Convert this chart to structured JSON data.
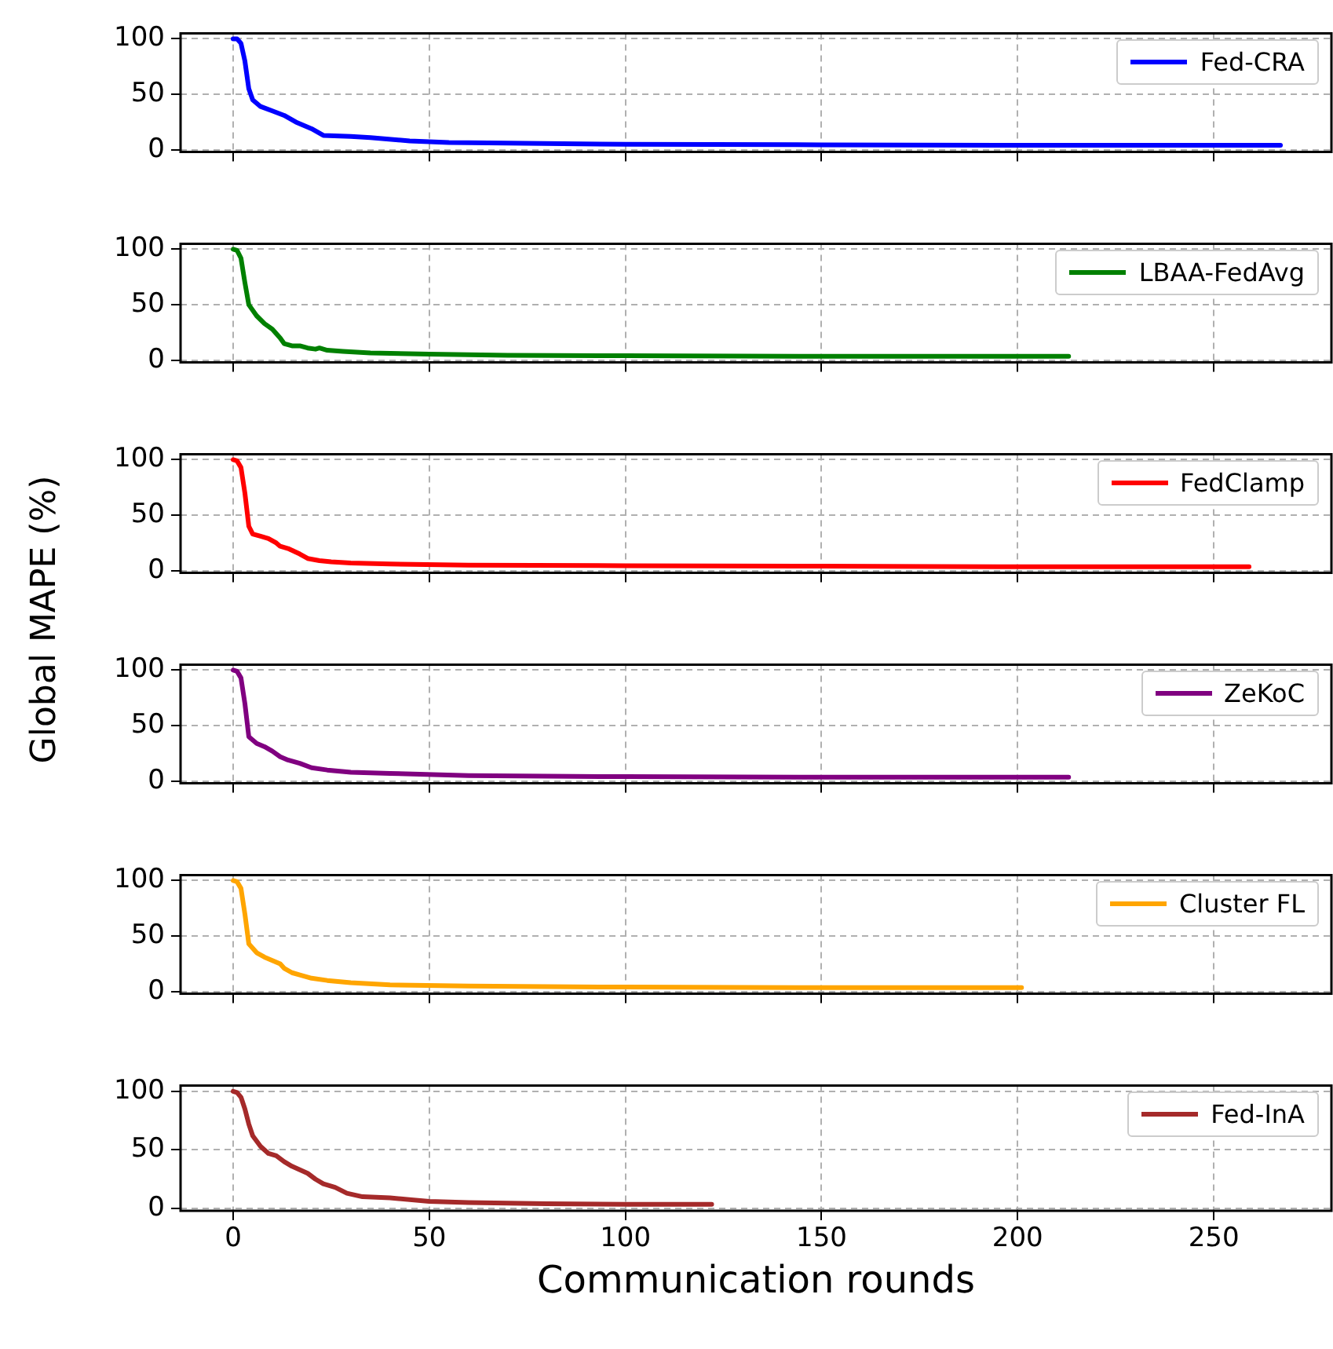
{
  "chart_data": [
    {
      "type": "line",
      "xlim": [
        -13.4,
        280
      ],
      "ylim": [
        -2,
        105
      ],
      "xticks": [
        0,
        50,
        100,
        150,
        200,
        250
      ],
      "yticks": [
        0,
        50,
        100
      ],
      "grid": true,
      "legend": "top right",
      "tick_labels": "y",
      "series": [
        {
          "name": "Fed-CRA",
          "color": "#0000ff",
          "x": [
            0,
            1,
            2,
            3,
            4,
            5,
            7,
            10,
            13,
            16,
            20,
            23,
            30,
            35,
            45,
            55,
            70,
            100,
            150,
            200,
            267
          ],
          "values": [
            100,
            100,
            96,
            80,
            55,
            45,
            39,
            35,
            31,
            25,
            19,
            13,
            12,
            11,
            8,
            6.5,
            6,
            5,
            4.5,
            4,
            4
          ]
        }
      ]
    },
    {
      "type": "line",
      "xlim": [
        -13.4,
        280
      ],
      "ylim": [
        -2,
        105
      ],
      "xticks": [
        0,
        50,
        100,
        150,
        200,
        250
      ],
      "yticks": [
        0,
        50,
        100
      ],
      "grid": true,
      "legend": "top right",
      "tick_labels": "y",
      "series": [
        {
          "name": "LBAA-FedAvg",
          "color": "#008000",
          "x": [
            0,
            1,
            2,
            3,
            4,
            6,
            8,
            10,
            12,
            13,
            15,
            17,
            19,
            21,
            22,
            24,
            28,
            35,
            50,
            70,
            100,
            150,
            213
          ],
          "values": [
            100,
            99,
            92,
            70,
            50,
            40,
            33,
            28,
            20,
            15,
            13,
            13,
            11,
            10,
            11,
            9,
            8,
            6.5,
            5.5,
            4.5,
            4,
            3.5,
            3.5
          ]
        }
      ]
    },
    {
      "type": "line",
      "xlim": [
        -13.4,
        280
      ],
      "ylim": [
        -2,
        105
      ],
      "xticks": [
        0,
        50,
        100,
        150,
        200,
        250
      ],
      "yticks": [
        0,
        50,
        100
      ],
      "grid": true,
      "legend": "top right",
      "tick_labels": "y",
      "ylabel": "Global MAPE (%)",
      "series": [
        {
          "name": "FedClamp",
          "color": "#ff0000",
          "x": [
            0,
            1,
            2,
            3,
            4,
            5,
            7,
            9,
            11,
            12,
            14,
            17,
            19,
            22,
            25,
            30,
            40,
            60,
            100,
            150,
            200,
            259
          ],
          "values": [
            100,
            99,
            93,
            70,
            40,
            33,
            31,
            29,
            25,
            22,
            20,
            15,
            11,
            9,
            8,
            7,
            6,
            5,
            4.5,
            4,
            3.5,
            3.5
          ]
        }
      ]
    },
    {
      "type": "line",
      "xlim": [
        -13.4,
        280
      ],
      "ylim": [
        -2,
        105
      ],
      "xticks": [
        0,
        50,
        100,
        150,
        200,
        250
      ],
      "yticks": [
        0,
        50,
        100
      ],
      "grid": true,
      "legend": "top right",
      "tick_labels": "y",
      "series": [
        {
          "name": "ZeKoC",
          "color": "#800080",
          "x": [
            0,
            1,
            2,
            3,
            4,
            6,
            8,
            10,
            12,
            14,
            17,
            20,
            24,
            30,
            40,
            60,
            100,
            150,
            213
          ],
          "values": [
            100,
            99,
            93,
            70,
            40,
            34,
            31,
            27,
            22,
            19,
            16,
            12,
            10,
            8,
            7,
            5,
            4,
            3.5,
            3.5
          ]
        }
      ]
    },
    {
      "type": "line",
      "xlim": [
        -13.4,
        280
      ],
      "ylim": [
        -2,
        105
      ],
      "xticks": [
        0,
        50,
        100,
        150,
        200,
        250
      ],
      "yticks": [
        0,
        50,
        100
      ],
      "grid": true,
      "legend": "top right",
      "tick_labels": "y",
      "series": [
        {
          "name": "Cluster FL",
          "color": "#ffa500",
          "x": [
            0,
            1,
            2,
            3,
            4,
            6,
            8,
            10,
            12,
            13,
            15,
            17,
            20,
            24,
            30,
            40,
            60,
            100,
            150,
            201
          ],
          "values": [
            100,
            99,
            93,
            70,
            43,
            35,
            31,
            28,
            25,
            21,
            17,
            15,
            12,
            10,
            8,
            6,
            5,
            4,
            3.5,
            3.5
          ]
        }
      ]
    },
    {
      "type": "line",
      "xlim": [
        -13.4,
        280
      ],
      "ylim": [
        -2,
        105
      ],
      "xticks": [
        0,
        50,
        100,
        150,
        200,
        250
      ],
      "yticks": [
        0,
        50,
        100
      ],
      "grid": true,
      "legend": "top right",
      "xlabel": "Communication rounds",
      "series": [
        {
          "name": "Fed-InA",
          "color": "#a52a2a",
          "x": [
            0,
            1,
            2,
            3,
            4,
            5,
            7,
            9,
            11,
            13,
            15,
            17,
            19,
            21,
            23,
            26,
            29,
            33,
            40,
            50,
            60,
            80,
            100,
            122
          ],
          "values": [
            100,
            99,
            95,
            85,
            72,
            62,
            53,
            47,
            45,
            40,
            36,
            33,
            30,
            25,
            21,
            18,
            13,
            10,
            9,
            6,
            5,
            4,
            3.5,
            3.5
          ]
        }
      ]
    }
  ]
}
